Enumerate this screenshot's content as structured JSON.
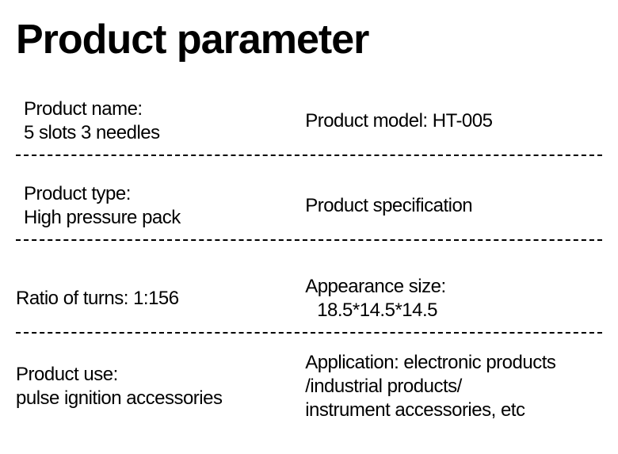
{
  "title": "Product parameter",
  "rows": [
    {
      "left": {
        "line1": "Product name:",
        "line2": "5 slots 3 needles"
      },
      "right": {
        "line1": "Product model: HT-005"
      }
    },
    {
      "left": {
        "line1": "Product type:",
        "line2": "High pressure pack"
      },
      "right": {
        "line1": "Product specification"
      }
    },
    {
      "left": {
        "line1": "Ratio of turns: 1:156"
      },
      "right": {
        "line1": "Appearance size:",
        "line2": "18.5*14.5*14.5"
      }
    },
    {
      "left": {
        "line1": "Product use:",
        "line2": "pulse ignition accessories"
      },
      "right": {
        "line1": "Application: electronic products",
        "line2": "/industrial products/",
        "line3": "instrument accessories, etc"
      }
    }
  ],
  "styling": {
    "background_color": "#ffffff",
    "text_color": "#000000",
    "title_fontsize": 52,
    "param_fontsize": 24,
    "border_style": "dashed",
    "border_color": "#000000"
  }
}
